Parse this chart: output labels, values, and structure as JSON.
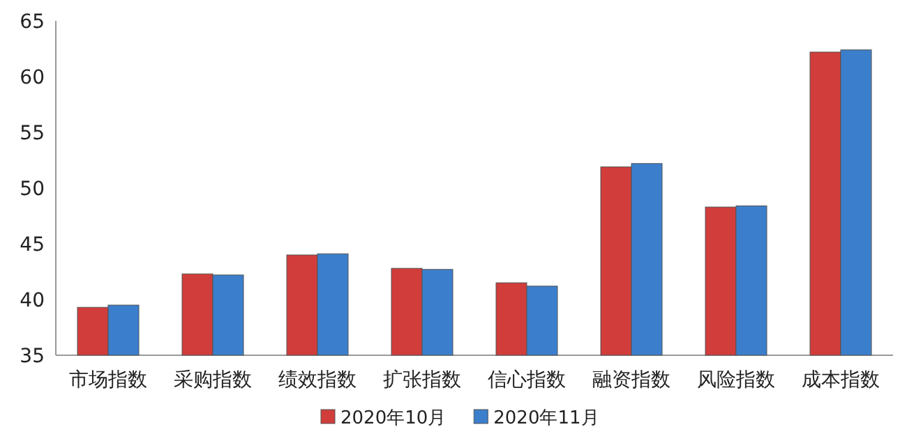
{
  "chart_data": {
    "type": "bar",
    "categories": [
      "市场指数",
      "采购指数",
      "绩效指数",
      "扩张指数",
      "信心指数",
      "融资指数",
      "风险指数",
      "成本指数"
    ],
    "series": [
      {
        "name": "2020年10月",
        "color": "#d13d3b",
        "values": [
          39.3,
          42.3,
          44.0,
          42.8,
          41.5,
          51.9,
          48.3,
          62.2
        ]
      },
      {
        "name": "2020年11月",
        "color": "#3b7fcc",
        "values": [
          39.5,
          42.2,
          44.1,
          42.7,
          41.2,
          52.2,
          48.4,
          62.4
        ]
      }
    ],
    "ylim": [
      35,
      65
    ],
    "yticks": [
      35,
      40,
      45,
      50,
      55,
      60,
      65
    ],
    "grid": false,
    "legend": "bottom"
  }
}
